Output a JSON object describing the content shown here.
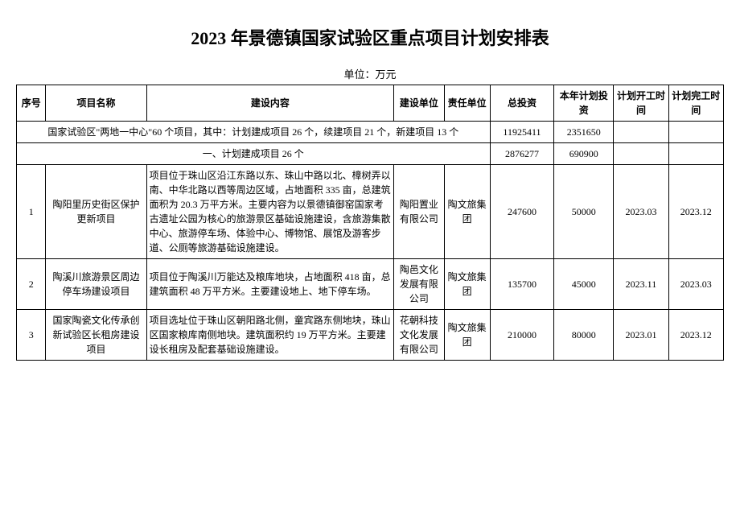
{
  "title": "2023 年景德镇国家试验区重点项目计划安排表",
  "unit": "单位：万元",
  "headers": {
    "seq": "序号",
    "name": "项目名称",
    "content": "建设内容",
    "build_unit": "建设单位",
    "resp_unit": "责任单位",
    "total_invest": "总投资",
    "year_invest": "本年计划投资",
    "start_time": "计划开工时间",
    "end_time": "计划完工时间"
  },
  "group1": {
    "label": "国家试验区\"两地一中心\"60 个项目，其中：计划建成项目 26 个，续建项目 21 个，新建项目 13 个",
    "total": "11925411",
    "year": "2351650"
  },
  "group2": {
    "label": "一、计划建成项目 26 个",
    "total": "2876277",
    "year": "690900"
  },
  "rows": [
    {
      "seq": "1",
      "name": "陶阳里历史街区保护更新项目",
      "content": "项目位于珠山区沿江东路以东、珠山中路以北、樟树弄以南、中华北路以西等周边区域，占地面积 335 亩，总建筑面积为 20.3 万平方米。主要内容为以景德镇御窑国家考古遗址公园为核心的旅游景区基础设施建设，含旅游集散中心、旅游停车场、体验中心、博物馆、展馆及游客步道、公厕等旅游基础设施建设。",
      "build_unit": "陶阳置业有限公司",
      "resp_unit": "陶文旅集团",
      "total": "247600",
      "year": "50000",
      "start": "2023.03",
      "end": "2023.12"
    },
    {
      "seq": "2",
      "name": "陶溪川旅游景区周边停车场建设项目",
      "content": "项目位于陶溪川万能达及粮库地块，占地面积 418 亩，总建筑面积 48 万平方米。主要建设地上、地下停车场。",
      "build_unit": "陶邑文化发展有限公司",
      "resp_unit": "陶文旅集团",
      "total": "135700",
      "year": "45000",
      "start": "2023.11",
      "end": "2023.03"
    },
    {
      "seq": "3",
      "name": "国家陶瓷文化传承创新试验区长租房建设项目",
      "content": "项目选址位于珠山区朝阳路北侧，童宾路东侧地块，珠山区国家粮库南侧地块。建筑面积约 19 万平方米。主要建设长租房及配套基础设施建设。",
      "build_unit": "花朝科技文化发展有限公司",
      "resp_unit": "陶文旅集团",
      "total": "210000",
      "year": "80000",
      "start": "2023.01",
      "end": "2023.12"
    }
  ]
}
